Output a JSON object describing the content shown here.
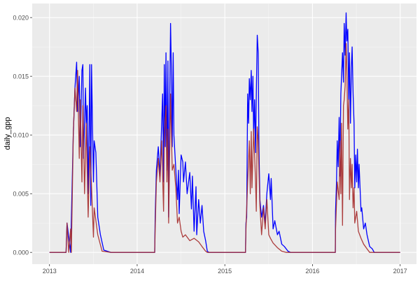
{
  "chart_data": {
    "type": "line",
    "title": "",
    "xlabel": "",
    "ylabel": "daily_gpp",
    "xlim": [
      "2012-10-20",
      "2017-03-10"
    ],
    "ylim": [
      -0.001,
      0.0212
    ],
    "x_ticks": [
      "2013",
      "2014",
      "2015",
      "2016",
      "2017"
    ],
    "y_ticks": [
      "0.000",
      "0.005",
      "0.010",
      "0.015",
      "0.020"
    ],
    "y_tick_values": [
      0,
      0.005,
      0.01,
      0.015,
      0.02
    ],
    "grid": true,
    "legend": "none",
    "colors": {
      "panel": "#EBEBEB",
      "grid": "#FFFFFF",
      "series_blue": "#0000FF",
      "series_red": "#A52A2A"
    },
    "series": [
      {
        "color": "#0000FF",
        "points": [
          [
            "2013-01-01",
            0
          ],
          [
            "2013-03-11",
            0
          ],
          [
            "2013-03-15",
            0.0025
          ],
          [
            "2013-03-30",
            0
          ],
          [
            "2013-04-10",
            0.01
          ],
          [
            "2013-04-17",
            0.014
          ],
          [
            "2013-04-24",
            0.0162
          ],
          [
            "2013-04-28",
            0.012
          ],
          [
            "2013-05-05",
            0.015
          ],
          [
            "2013-05-09",
            0.009
          ],
          [
            "2013-05-16",
            0.0155
          ],
          [
            "2013-05-20",
            0.016
          ],
          [
            "2013-05-23",
            0.008
          ],
          [
            "2013-05-31",
            0.014
          ],
          [
            "2013-06-03",
            0.011
          ],
          [
            "2013-06-07",
            0.0125
          ],
          [
            "2013-06-11",
            0.005
          ],
          [
            "2013-06-14",
            0.009
          ],
          [
            "2013-06-18",
            0.016
          ],
          [
            "2013-06-22",
            0.004
          ],
          [
            "2013-06-25",
            0.016
          ],
          [
            "2013-07-03",
            0.006
          ],
          [
            "2013-07-06",
            0.0095
          ],
          [
            "2013-07-13",
            0.0085
          ],
          [
            "2013-07-21",
            0.003
          ],
          [
            "2013-08-01",
            0.0015
          ],
          [
            "2013-08-15",
            0.0002
          ],
          [
            "2013-09-14",
            0
          ],
          [
            "2014-03-15",
            0
          ],
          [
            "2014-03-17",
            0.003
          ],
          [
            "2014-03-22",
            0.007
          ],
          [
            "2014-03-30",
            0.009
          ],
          [
            "2014-04-06",
            0.0065
          ],
          [
            "2014-04-13",
            0.011
          ],
          [
            "2014-04-17",
            0.0135
          ],
          [
            "2014-04-21",
            0.006
          ],
          [
            "2014-04-24",
            0.016
          ],
          [
            "2014-04-28",
            0.009
          ],
          [
            "2014-05-01",
            0.017
          ],
          [
            "2014-05-05",
            0.007
          ],
          [
            "2014-05-09",
            0.0163
          ],
          [
            "2014-05-12",
            0.003
          ],
          [
            "2014-05-16",
            0.012
          ],
          [
            "2014-05-20",
            0.0195
          ],
          [
            "2014-05-23",
            0.016
          ],
          [
            "2014-05-27",
            0.009
          ],
          [
            "2014-05-31",
            0.017
          ],
          [
            "2014-06-03",
            0.01
          ],
          [
            "2014-06-11",
            0.007
          ],
          [
            "2014-06-18",
            0.0045
          ],
          [
            "2014-06-22",
            0.007
          ],
          [
            "2014-06-25",
            0.0033
          ],
          [
            "2014-07-03",
            0.0083
          ],
          [
            "2014-07-10",
            0.0077
          ],
          [
            "2014-07-13",
            0.006
          ],
          [
            "2014-07-21",
            0.0077
          ],
          [
            "2014-07-28",
            0.005
          ],
          [
            "2014-08-08",
            0.0068
          ],
          [
            "2014-08-15",
            0.0037
          ],
          [
            "2014-08-19",
            0.0065
          ],
          [
            "2014-08-26",
            0.0018
          ],
          [
            "2014-09-03",
            0.0056
          ],
          [
            "2014-09-06",
            0.0015
          ],
          [
            "2014-09-14",
            0.0045
          ],
          [
            "2014-09-21",
            0.0025
          ],
          [
            "2014-09-28",
            0.004
          ],
          [
            "2014-10-05",
            0.0018
          ],
          [
            "2014-10-13",
            0.001
          ],
          [
            "2014-10-20",
            0.0001
          ],
          [
            "2014-10-27",
            0
          ],
          [
            "2015-03-28",
            0
          ],
          [
            "2015-03-30",
            0.0025
          ],
          [
            "2015-04-02",
            0.003
          ],
          [
            "2015-04-06",
            0.0135
          ],
          [
            "2015-04-10",
            0.011
          ],
          [
            "2015-04-13",
            0.0148
          ],
          [
            "2015-04-17",
            0.013
          ],
          [
            "2015-04-21",
            0.0155
          ],
          [
            "2015-04-24",
            0.012
          ],
          [
            "2015-04-28",
            0.015
          ],
          [
            "2015-05-01",
            0.01
          ],
          [
            "2015-05-05",
            0.013
          ],
          [
            "2015-05-09",
            0.0085
          ],
          [
            "2015-05-12",
            0.0133
          ],
          [
            "2015-05-16",
            0.0185
          ],
          [
            "2015-05-20",
            0.017
          ],
          [
            "2015-05-23",
            0.009
          ],
          [
            "2015-05-27",
            0.0045
          ],
          [
            "2015-06-03",
            0.003
          ],
          [
            "2015-06-11",
            0.004
          ],
          [
            "2015-06-18",
            0.0025
          ],
          [
            "2015-06-25",
            0.005
          ],
          [
            "2015-07-03",
            0.0067
          ],
          [
            "2015-07-10",
            0.0045
          ],
          [
            "2015-07-13",
            0.0063
          ],
          [
            "2015-07-21",
            0.002
          ],
          [
            "2015-07-28",
            0.0027
          ],
          [
            "2015-08-08",
            0.0015
          ],
          [
            "2015-08-15",
            0.0018
          ],
          [
            "2015-08-26",
            0.0007
          ],
          [
            "2015-09-06",
            0.0005
          ],
          [
            "2015-09-21",
            0.0001
          ],
          [
            "2015-10-02",
            0
          ],
          [
            "2016-04-05",
            0
          ],
          [
            "2016-04-06",
            0.0035
          ],
          [
            "2016-04-10",
            0.006
          ],
          [
            "2016-04-13",
            0.0095
          ],
          [
            "2016-04-17",
            0.0073
          ],
          [
            "2016-04-21",
            0.0115
          ],
          [
            "2016-04-24",
            0.0065
          ],
          [
            "2016-04-28",
            0.0135
          ],
          [
            "2016-05-01",
            0.015
          ],
          [
            "2016-05-05",
            0.017
          ],
          [
            "2016-05-09",
            0.0145
          ],
          [
            "2016-05-12",
            0.0195
          ],
          [
            "2016-05-16",
            0.0168
          ],
          [
            "2016-05-20",
            0.0204
          ],
          [
            "2016-05-23",
            0.018
          ],
          [
            "2016-05-27",
            0.019
          ],
          [
            "2016-05-31",
            0.013
          ],
          [
            "2016-06-03",
            0.017
          ],
          [
            "2016-06-07",
            0.011
          ],
          [
            "2016-06-11",
            0.0158
          ],
          [
            "2016-06-14",
            0.0175
          ],
          [
            "2016-06-18",
            0.0135
          ],
          [
            "2016-06-22",
            0.011
          ],
          [
            "2016-06-25",
            0.0055
          ],
          [
            "2016-06-29",
            0.0083
          ],
          [
            "2016-07-03",
            0.006
          ],
          [
            "2016-07-06",
            0.0088
          ],
          [
            "2016-07-10",
            0.0055
          ],
          [
            "2016-07-13",
            0.0075
          ],
          [
            "2016-07-21",
            0.0035
          ],
          [
            "2016-07-24",
            0.0038
          ],
          [
            "2016-08-01",
            0.002
          ],
          [
            "2016-08-08",
            0.0025
          ],
          [
            "2016-08-15",
            0.0015
          ],
          [
            "2016-08-26",
            0.0005
          ],
          [
            "2016-09-06",
            0.0003
          ],
          [
            "2016-09-14",
            0
          ],
          [
            "2016-12-31",
            0
          ]
        ]
      },
      {
        "color": "#A52A2A",
        "points": [
          [
            "2013-01-01",
            0
          ],
          [
            "2013-03-11",
            0
          ],
          [
            "2013-03-15",
            0.0025
          ],
          [
            "2013-03-22",
            0
          ],
          [
            "2013-03-30",
            0.002
          ],
          [
            "2013-04-02",
            0
          ],
          [
            "2013-04-10",
            0.01
          ],
          [
            "2013-04-17",
            0.014
          ],
          [
            "2013-04-24",
            0.012
          ],
          [
            "2013-04-28",
            0.0155
          ],
          [
            "2013-05-05",
            0.008
          ],
          [
            "2013-05-09",
            0.013
          ],
          [
            "2013-05-16",
            0.006
          ],
          [
            "2013-05-20",
            0.0125
          ],
          [
            "2013-05-27",
            0.005
          ],
          [
            "2013-06-03",
            0.011
          ],
          [
            "2013-06-11",
            0.003
          ],
          [
            "2013-06-18",
            0.009
          ],
          [
            "2013-06-25",
            0.0055
          ],
          [
            "2013-07-03",
            0.0013
          ],
          [
            "2013-07-06",
            0.0038
          ],
          [
            "2013-07-21",
            0.0015
          ],
          [
            "2013-08-08",
            0.0001
          ],
          [
            "2013-09-14",
            0
          ],
          [
            "2014-03-15",
            0
          ],
          [
            "2014-03-17",
            0.002
          ],
          [
            "2014-03-22",
            0.006
          ],
          [
            "2014-03-30",
            0.008
          ],
          [
            "2014-04-06",
            0.006
          ],
          [
            "2014-04-13",
            0.0095
          ],
          [
            "2014-04-21",
            0.0035
          ],
          [
            "2014-04-24",
            0.01
          ],
          [
            "2014-05-01",
            0.0125
          ],
          [
            "2014-05-05",
            0.006
          ],
          [
            "2014-05-09",
            0.0105
          ],
          [
            "2014-05-12",
            0.0025
          ],
          [
            "2014-05-20",
            0.0135
          ],
          [
            "2014-05-27",
            0.007
          ],
          [
            "2014-06-03",
            0.0075
          ],
          [
            "2014-06-11",
            0.0055
          ],
          [
            "2014-06-18",
            0.0025
          ],
          [
            "2014-06-25",
            0.003
          ],
          [
            "2014-07-03",
            0.0018
          ],
          [
            "2014-07-10",
            0.0013
          ],
          [
            "2014-07-21",
            0.0015
          ],
          [
            "2014-08-08",
            0.001
          ],
          [
            "2014-08-26",
            0.0012
          ],
          [
            "2014-09-14",
            0.0009
          ],
          [
            "2014-09-28",
            0.0005
          ],
          [
            "2014-10-13",
            0.0001
          ],
          [
            "2014-10-20",
            0
          ],
          [
            "2015-03-28",
            0
          ],
          [
            "2015-03-30",
            0.002
          ],
          [
            "2015-04-06",
            0.006
          ],
          [
            "2015-04-13",
            0.0095
          ],
          [
            "2015-04-17",
            0.005
          ],
          [
            "2015-04-21",
            0.0103
          ],
          [
            "2015-04-24",
            0.0055
          ],
          [
            "2015-05-01",
            0.0105
          ],
          [
            "2015-05-09",
            0.006
          ],
          [
            "2015-05-12",
            0.0035
          ],
          [
            "2015-05-16",
            0.0107
          ],
          [
            "2015-05-20",
            0.0095
          ],
          [
            "2015-05-27",
            0.004
          ],
          [
            "2015-06-03",
            0.0015
          ],
          [
            "2015-06-11",
            0.0038
          ],
          [
            "2015-06-18",
            0.002
          ],
          [
            "2015-06-25",
            0.0045
          ],
          [
            "2015-07-03",
            0.0015
          ],
          [
            "2015-07-10",
            0.0012
          ],
          [
            "2015-07-21",
            0.0008
          ],
          [
            "2015-08-08",
            0.0004
          ],
          [
            "2015-08-26",
            0.0001
          ],
          [
            "2015-09-14",
            0
          ],
          [
            "2016-04-05",
            0
          ],
          [
            "2016-04-06",
            0.002
          ],
          [
            "2016-04-13",
            0.006
          ],
          [
            "2016-04-21",
            0.0045
          ],
          [
            "2016-04-24",
            0.0095
          ],
          [
            "2016-04-28",
            0.005
          ],
          [
            "2016-05-01",
            0.011
          ],
          [
            "2016-05-05",
            0.0023
          ],
          [
            "2016-05-09",
            0.0125
          ],
          [
            "2016-05-12",
            0.013
          ],
          [
            "2016-05-16",
            0.0142
          ],
          [
            "2016-05-20",
            0.0178
          ],
          [
            "2016-05-23",
            0.0155
          ],
          [
            "2016-05-27",
            0.0105
          ],
          [
            "2016-05-31",
            0.013
          ],
          [
            "2016-06-03",
            0.0045
          ],
          [
            "2016-06-07",
            0.008
          ],
          [
            "2016-06-11",
            0.0055
          ],
          [
            "2016-06-14",
            0.0075
          ],
          [
            "2016-06-18",
            0.0038
          ],
          [
            "2016-06-22",
            0.0055
          ],
          [
            "2016-06-25",
            0.0025
          ],
          [
            "2016-07-03",
            0.0035
          ],
          [
            "2016-07-10",
            0.0018
          ],
          [
            "2016-07-21",
            0.0012
          ],
          [
            "2016-08-01",
            0.0007
          ],
          [
            "2016-08-15",
            0.0003
          ],
          [
            "2016-08-26",
            0
          ],
          [
            "2016-12-31",
            0
          ]
        ]
      }
    ]
  }
}
